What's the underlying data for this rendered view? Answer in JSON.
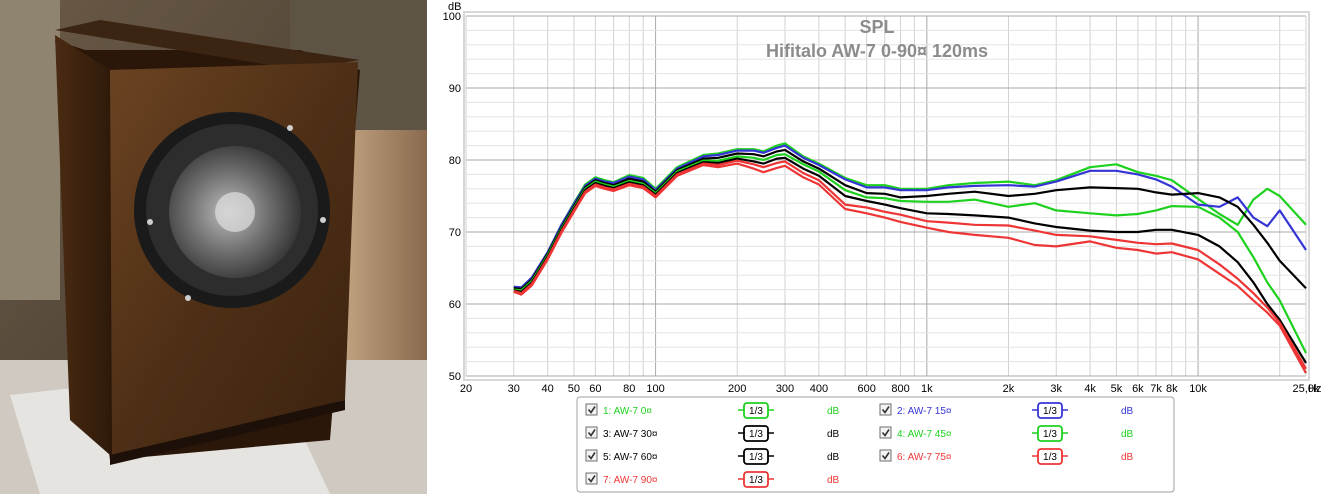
{
  "chart_data": {
    "type": "line",
    "title": "SPL",
    "subtitle": "Hifitalo AW-7 0-90¤ 120ms",
    "ylabel": "dB",
    "xlabel": "Hz",
    "xscale": "log",
    "xlim": [
      20,
      25000
    ],
    "ylim": [
      50,
      100
    ],
    "grid": true,
    "x_tick_labels": [
      {
        "v": 20,
        "t": "20"
      },
      {
        "v": 30,
        "t": "30"
      },
      {
        "v": 40,
        "t": "40"
      },
      {
        "v": 50,
        "t": "50"
      },
      {
        "v": 60,
        "t": "60"
      },
      {
        "v": 80,
        "t": "80"
      },
      {
        "v": 100,
        "t": "100"
      },
      {
        "v": 200,
        "t": "200"
      },
      {
        "v": 300,
        "t": "300"
      },
      {
        "v": 400,
        "t": "400"
      },
      {
        "v": 600,
        "t": "600"
      },
      {
        "v": 800,
        "t": "800"
      },
      {
        "v": 1000,
        "t": "1k"
      },
      {
        "v": 2000,
        "t": "2k"
      },
      {
        "v": 3000,
        "t": "3k"
      },
      {
        "v": 4000,
        "t": "4k"
      },
      {
        "v": 5000,
        "t": "5k"
      },
      {
        "v": 6000,
        "t": "6k"
      },
      {
        "v": 7000,
        "t": "7k"
      },
      {
        "v": 8000,
        "t": "8k"
      },
      {
        "v": 10000,
        "t": "10k"
      },
      {
        "v": 25000,
        "t": "25,0k"
      }
    ],
    "y_ticks": [
      50,
      60,
      70,
      80,
      90,
      100
    ],
    "x": [
      30,
      32,
      35,
      40,
      45,
      50,
      55,
      60,
      65,
      70,
      80,
      90,
      100,
      120,
      150,
      170,
      200,
      230,
      250,
      280,
      300,
      350,
      400,
      500,
      600,
      700,
      800,
      1000,
      1200,
      1500,
      2000,
      2500,
      3000,
      4000,
      5000,
      6000,
      7000,
      8000,
      10000,
      12000,
      14000,
      16000,
      18000,
      20000,
      25000
    ],
    "series": [
      {
        "name": "1: AW-7 0¤",
        "color": "#1fd11f",
        "values": [
          62.3,
          62.2,
          63.6,
          67.2,
          71,
          74,
          76.6,
          77.6,
          77.2,
          76.9,
          77.9,
          77.5,
          76,
          79,
          80.7,
          80.9,
          81.5,
          81.5,
          81.2,
          82,
          82.3,
          80.5,
          79.5,
          77.5,
          76.5,
          76.5,
          76,
          76,
          76.5,
          76.8,
          77,
          76.5,
          77.2,
          79,
          79.4,
          78.3,
          77.8,
          77.2,
          74.6,
          72.5,
          71,
          74.5,
          76,
          75,
          71
        ]
      },
      {
        "name": "2: AW-7 15¤",
        "color": "#3535d6",
        "values": [
          62.4,
          62.3,
          63.7,
          67.2,
          71,
          73.9,
          76.4,
          77.4,
          77,
          76.8,
          77.7,
          77.3,
          75.8,
          78.8,
          80.5,
          80.7,
          81.3,
          81.3,
          81,
          81.7,
          82,
          80.3,
          79.3,
          77.3,
          76.2,
          76.2,
          75.8,
          75.8,
          76.2,
          76.4,
          76.5,
          76.3,
          77,
          78.5,
          78.5,
          78,
          77.3,
          76.3,
          73.8,
          73.5,
          74.8,
          72,
          70.8,
          73,
          67.5
        ]
      },
      {
        "name": "3: AW-7 30¤",
        "color": "#000000",
        "values": [
          62.2,
          62.1,
          63.4,
          67,
          70.7,
          73.6,
          76.2,
          77.2,
          76.8,
          76.5,
          77.4,
          77,
          75.6,
          78.6,
          80.2,
          80.3,
          80.9,
          80.8,
          80.5,
          81.2,
          81.4,
          79.8,
          78.8,
          76.5,
          75.4,
          75.3,
          74.8,
          75,
          75.3,
          75.6,
          75,
          75.3,
          75.8,
          76.2,
          76.1,
          76,
          75.5,
          75.2,
          75.4,
          74.8,
          73.5,
          71,
          68.5,
          66,
          62.2
        ]
      },
      {
        "name": "4: AW-7 45¤",
        "color": "#1fd11f",
        "values": [
          62,
          61.9,
          63.2,
          66.8,
          70.5,
          73.4,
          76,
          77,
          76.6,
          76.3,
          77.1,
          76.7,
          75.4,
          78.4,
          79.9,
          79.9,
          80.5,
          80.3,
          80,
          80.7,
          80.8,
          79.4,
          78.4,
          75.8,
          74.8,
          74.7,
          74.3,
          74.2,
          74.2,
          74.5,
          73.5,
          74,
          73,
          72.6,
          72.3,
          72.5,
          73,
          73.6,
          73.5,
          72,
          70,
          66.5,
          63,
          60.5,
          53.2
        ]
      },
      {
        "name": "5: AW-7 60¤",
        "color": "#000000",
        "values": [
          61.9,
          61.7,
          63,
          66.6,
          70.3,
          73.2,
          75.8,
          76.8,
          76.4,
          76.1,
          76.9,
          76.5,
          75.2,
          78.2,
          79.7,
          79.6,
          80.2,
          79.8,
          79.5,
          80.2,
          80.3,
          78.8,
          77.8,
          75,
          74.3,
          73.8,
          73.3,
          72.6,
          72.5,
          72.3,
          72,
          71.2,
          70.7,
          70.2,
          70,
          70,
          70.3,
          70.3,
          69.6,
          68,
          65.8,
          63,
          60,
          57.8,
          51.8
        ]
      },
      {
        "name": "6: AW-7 75¤",
        "color": "#ee3535",
        "values": [
          61.8,
          61.5,
          62.8,
          66.4,
          70.1,
          73,
          75.6,
          76.6,
          76.2,
          75.9,
          76.7,
          76.3,
          75,
          78,
          79.5,
          79.3,
          79.9,
          79.4,
          79,
          79.6,
          79.8,
          78.2,
          77.2,
          73.8,
          73.4,
          72.8,
          72.4,
          71.5,
          71.3,
          71,
          70.9,
          70.2,
          69.6,
          69.4,
          68.9,
          68.5,
          68.3,
          68.4,
          67.5,
          65.5,
          63.5,
          61.5,
          59.5,
          57.4,
          51
        ]
      },
      {
        "name": "7: AW-7 90¤",
        "color": "#ee3535",
        "values": [
          61.7,
          61.3,
          62.6,
          66.2,
          69.9,
          72.8,
          75.4,
          76.4,
          76,
          75.7,
          76.5,
          76.1,
          74.8,
          77.8,
          79.3,
          79,
          79.5,
          78.8,
          78.3,
          78.9,
          79.2,
          77.6,
          76.6,
          73.2,
          72.6,
          72,
          71.4,
          70.6,
          70,
          69.6,
          69.2,
          68.2,
          68,
          68.7,
          67.8,
          67.5,
          67,
          67.2,
          66.2,
          64.2,
          62.5,
          60.5,
          58.8,
          57,
          50.4
        ]
      }
    ],
    "legend_unit": "dB",
    "smoothing_label": "1/3"
  }
}
